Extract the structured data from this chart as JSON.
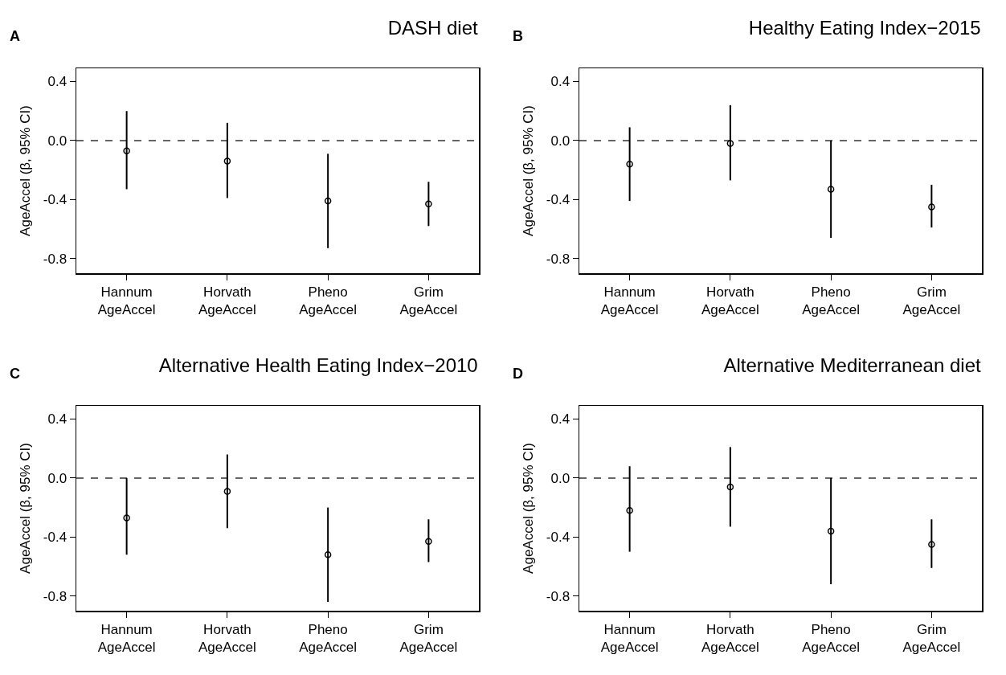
{
  "chart_data": [
    {
      "type": "scatter",
      "title": "DASH diet",
      "ylabel": "AgeAccel (β, 95% CI)",
      "annotations": [
        "A"
      ],
      "categories": [
        "Hannum\nAgeAccel",
        "Horvath\nAgeAccel",
        "Pheno\nAgeAccel",
        "Grim\nAgeAccel"
      ],
      "series": [
        {
          "color": "#000000",
          "values": [
            -0.07,
            -0.14,
            -0.41,
            -0.43
          ],
          "errors": [
            [
              -0.33,
              0.2
            ],
            [
              -0.39,
              0.12
            ],
            [
              -0.73,
              -0.09
            ],
            [
              -0.58,
              -0.28
            ]
          ]
        }
      ],
      "ylim": [
        -0.9,
        0.49
      ],
      "yticks": [
        {
          "value": 0.4,
          "label": "0.4"
        },
        {
          "value": 0,
          "label": "0.0"
        },
        {
          "value": -0.4,
          "label": "-0.4"
        },
        {
          "value": -0.8,
          "label": "-0.8"
        }
      ],
      "ref_lines": [
        {
          "axis": "y",
          "value": 0,
          "line_style": "dashed"
        }
      ],
      "grid": false,
      "marker": "circle"
    },
    {
      "type": "scatter",
      "title": "Healthy Eating Index−2015",
      "ylabel": "AgeAccel (β, 95% CI)",
      "annotations": [
        "B"
      ],
      "categories": [
        "Hannum\nAgeAccel",
        "Horvath\nAgeAccel",
        "Pheno\nAgeAccel",
        "Grim\nAgeAccel"
      ],
      "series": [
        {
          "color": "#000000",
          "values": [
            -0.16,
            -0.02,
            -0.33,
            -0.45
          ],
          "errors": [
            [
              -0.41,
              0.09
            ],
            [
              -0.27,
              0.24
            ],
            [
              -0.66,
              0.0
            ],
            [
              -0.59,
              -0.3
            ]
          ]
        }
      ],
      "ylim": [
        -0.9,
        0.49
      ],
      "yticks": [
        {
          "value": 0.4,
          "label": "0.4"
        },
        {
          "value": 0,
          "label": "0.0"
        },
        {
          "value": -0.4,
          "label": "-0.4"
        },
        {
          "value": -0.8,
          "label": "-0.8"
        }
      ],
      "ref_lines": [
        {
          "axis": "y",
          "value": 0,
          "line_style": "dashed"
        }
      ],
      "grid": false,
      "marker": "circle"
    },
    {
      "type": "scatter",
      "title": "Alternative Health Eating Index−2010",
      "ylabel": "AgeAccel (β, 95% CI)",
      "annotations": [
        "C"
      ],
      "categories": [
        "Hannum\nAgeAccel",
        "Horvath\nAgeAccel",
        "Pheno\nAgeAccel",
        "Grim\nAgeAccel"
      ],
      "series": [
        {
          "color": "#000000",
          "values": [
            -0.27,
            -0.09,
            -0.52,
            -0.43
          ],
          "errors": [
            [
              -0.52,
              0.0
            ],
            [
              -0.34,
              0.16
            ],
            [
              -0.84,
              -0.2
            ],
            [
              -0.57,
              -0.28
            ]
          ]
        }
      ],
      "ylim": [
        -0.9,
        0.49
      ],
      "yticks": [
        {
          "value": 0.4,
          "label": "0.4"
        },
        {
          "value": 0,
          "label": "0.0"
        },
        {
          "value": -0.4,
          "label": "-0.4"
        },
        {
          "value": -0.8,
          "label": "-0.8"
        }
      ],
      "ref_lines": [
        {
          "axis": "y",
          "value": 0,
          "line_style": "dashed"
        }
      ],
      "grid": false,
      "marker": "circle"
    },
    {
      "type": "scatter",
      "title": "Alternative Mediterranean diet",
      "ylabel": "AgeAccel (β, 95% CI)",
      "annotations": [
        "D"
      ],
      "categories": [
        "Hannum\nAgeAccel",
        "Horvath\nAgeAccel",
        "Pheno\nAgeAccel",
        "Grim\nAgeAccel"
      ],
      "series": [
        {
          "color": "#000000",
          "values": [
            -0.22,
            -0.06,
            -0.36,
            -0.45
          ],
          "errors": [
            [
              -0.5,
              0.08
            ],
            [
              -0.33,
              0.21
            ],
            [
              -0.72,
              0.0
            ],
            [
              -0.61,
              -0.28
            ]
          ]
        }
      ],
      "ylim": [
        -0.9,
        0.49
      ],
      "yticks": [
        {
          "value": 0.4,
          "label": "0.4"
        },
        {
          "value": 0,
          "label": "0.0"
        },
        {
          "value": -0.4,
          "label": "-0.4"
        },
        {
          "value": -0.8,
          "label": "-0.8"
        }
      ],
      "ref_lines": [
        {
          "axis": "y",
          "value": 0,
          "line_style": "dashed"
        }
      ],
      "grid": false,
      "marker": "circle"
    }
  ]
}
